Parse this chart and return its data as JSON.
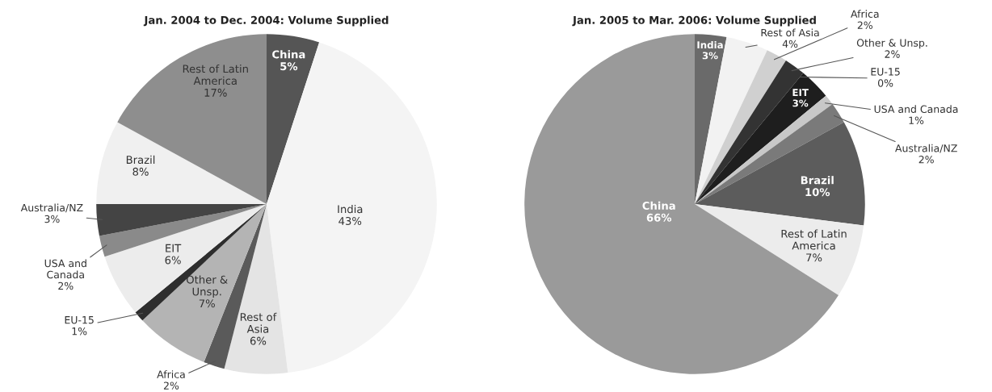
{
  "chart_data": [
    {
      "type": "pie",
      "title": "Jan. 2004 to Dec. 2004: Volume Supplied",
      "categories": [
        "China",
        "India",
        "Rest of Asia",
        "Africa",
        "Other & Unsp.",
        "EU-15",
        "EIT",
        "USA and Canada",
        "Australia/NZ",
        "Brazil",
        "Rest of Latin America"
      ],
      "values": [
        5,
        43,
        6,
        2,
        7,
        1,
        6,
        2,
        3,
        8,
        17
      ],
      "value_labels": [
        "5%",
        "43%",
        "6%",
        "2%",
        "7%",
        "1%",
        "6%",
        "2%",
        "3%",
        "8%",
        "17%"
      ],
      "colors": [
        "#555555",
        "#f4f4f4",
        "#e4e4e4",
        "#5a5a5a",
        "#b4b4b4",
        "#2e2e2e",
        "#ececec",
        "#8a8a8a",
        "#444444",
        "#f0f0f0",
        "#8e8e8e"
      ]
    },
    {
      "type": "pie",
      "title": "Jan. 2005 to Mar. 2006: Volume Supplied",
      "categories": [
        "India",
        "Rest of Asia",
        "Africa",
        "Other & Unsp.",
        "EU-15",
        "EIT",
        "USA and Canada",
        "Australia/NZ",
        "Brazil",
        "Rest of Latin America",
        "China"
      ],
      "values": [
        3,
        4,
        2,
        2,
        0,
        3,
        1,
        2,
        10,
        7,
        66
      ],
      "value_labels": [
        "3%",
        "4%",
        "2%",
        "2%",
        "0%",
        "3%",
        "1%",
        "2%",
        "10%",
        "7%",
        "66%"
      ],
      "colors": [
        "#6a6a6a",
        "#f2f2f2",
        "#d0d0d0",
        "#333333",
        "#555555",
        "#1e1e1e",
        "#c8c8c8",
        "#7a7a7a",
        "#5c5c5c",
        "#ececec",
        "#9a9a9a"
      ]
    }
  ]
}
